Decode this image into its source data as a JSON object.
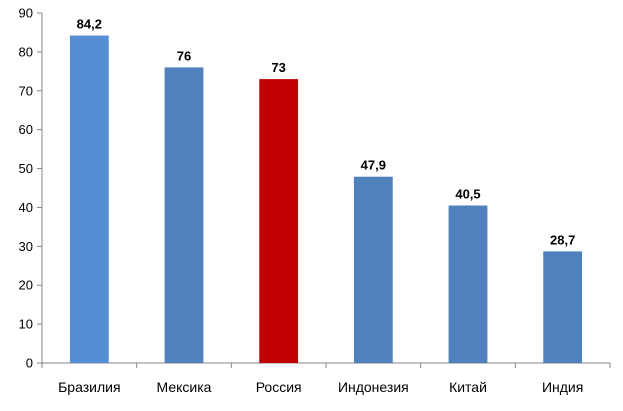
{
  "chart_data": {
    "type": "bar",
    "categories": [
      "Бразилия",
      "Мексика",
      "Россия",
      "Индонезия",
      "Китай",
      "Индия"
    ],
    "values": [
      84.2,
      76,
      73,
      47.9,
      40.5,
      28.7
    ],
    "value_labels": [
      "84,2",
      "76",
      "73",
      "47,9",
      "40,5",
      "28,7"
    ],
    "bar_colors": [
      "#558ED5",
      "#4F81BD",
      "#C00000",
      "#4F81BD",
      "#4F81BD",
      "#4F81BD"
    ],
    "ylim": [
      0,
      90
    ],
    "yticks": [
      "0",
      "10",
      "20",
      "30",
      "40",
      "50",
      "60",
      "70",
      "80",
      "90"
    ],
    "grid": false,
    "legend": "none",
    "title": "",
    "xlabel": "",
    "ylabel": ""
  }
}
